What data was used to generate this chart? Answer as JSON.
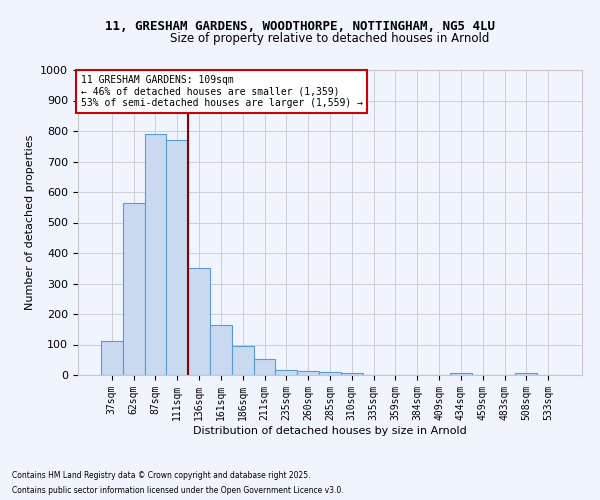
{
  "title_line1": "11, GRESHAM GARDENS, WOODTHORPE, NOTTINGHAM, NG5 4LU",
  "title_line2": "Size of property relative to detached houses in Arnold",
  "xlabel": "Distribution of detached houses by size in Arnold",
  "ylabel": "Number of detached properties",
  "categories": [
    "37sqm",
    "62sqm",
    "87sqm",
    "111sqm",
    "136sqm",
    "161sqm",
    "186sqm",
    "211sqm",
    "235sqm",
    "260sqm",
    "285sqm",
    "310sqm",
    "335sqm",
    "359sqm",
    "384sqm",
    "409sqm",
    "434sqm",
    "459sqm",
    "483sqm",
    "508sqm",
    "533sqm"
  ],
  "values": [
    110,
    565,
    790,
    770,
    350,
    165,
    95,
    52,
    17,
    12,
    10,
    7,
    0,
    0,
    0,
    0,
    8,
    0,
    0,
    7,
    0
  ],
  "bar_color": "#c9daf0",
  "bar_edge_color": "#5b9bd5",
  "vline_x": 3.5,
  "vline_color": "#8b0000",
  "annotation_text": "11 GRESHAM GARDENS: 109sqm\n← 46% of detached houses are smaller (1,359)\n53% of semi-detached houses are larger (1,559) →",
  "annotation_box_color": "#ffffff",
  "annotation_border_color": "#cc0000",
  "ylim": [
    0,
    1000
  ],
  "yticks": [
    0,
    100,
    200,
    300,
    400,
    500,
    600,
    700,
    800,
    900,
    1000
  ],
  "background_color": "#f0f4ff",
  "grid_color": "#c8c8c8",
  "footnote1": "Contains HM Land Registry data © Crown copyright and database right 2025.",
  "footnote2": "Contains public sector information licensed under the Open Government Licence v3.0."
}
